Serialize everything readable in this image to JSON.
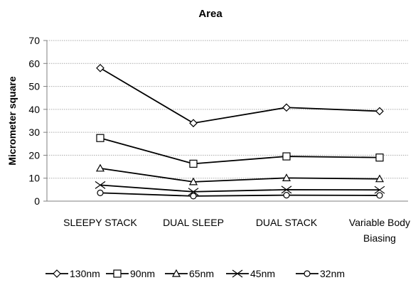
{
  "chart_data": {
    "type": "line",
    "title": "Area",
    "xlabel": "",
    "ylabel": "Micrometer square",
    "categories": [
      "SLEEPY STACK",
      "DUAL SLEEP",
      "DUAL STACK",
      "Variable Body Biasing"
    ],
    "ylim": [
      0,
      70
    ],
    "yticks": [
      0,
      10,
      20,
      30,
      40,
      50,
      60,
      70
    ],
    "grid": true,
    "legend_position": "bottom",
    "series": [
      {
        "name": "130nm",
        "marker": "diamond",
        "values": [
          58,
          34,
          40.8,
          39.2
        ]
      },
      {
        "name": "90nm",
        "marker": "square",
        "values": [
          27.5,
          16.3,
          19.5,
          19
        ]
      },
      {
        "name": "65nm",
        "marker": "triangle",
        "values": [
          14.3,
          8.4,
          10.1,
          9.7
        ]
      },
      {
        "name": "45nm",
        "marker": "x",
        "values": [
          7,
          4.1,
          5,
          4.9
        ]
      },
      {
        "name": "32nm",
        "marker": "circle",
        "values": [
          3.6,
          2.2,
          2.6,
          2.5
        ]
      }
    ]
  }
}
